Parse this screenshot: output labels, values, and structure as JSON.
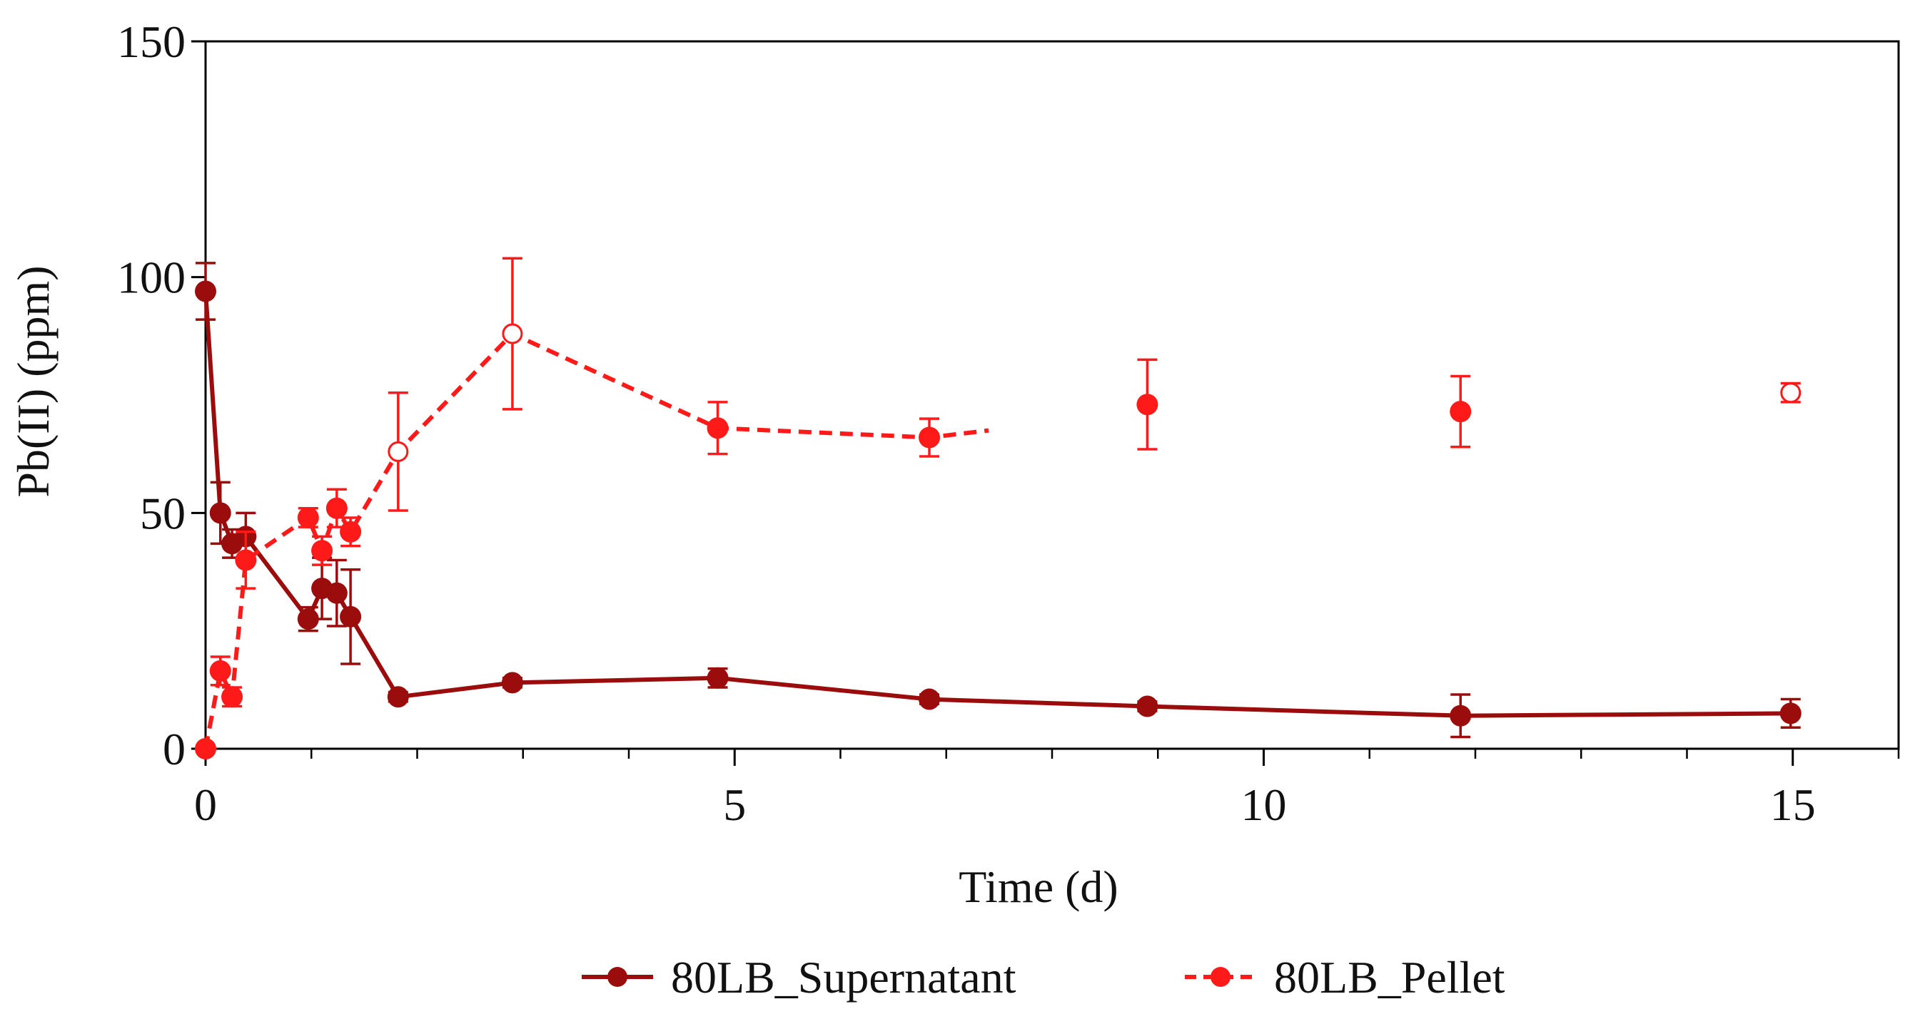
{
  "chart_data": {
    "type": "line",
    "title": "",
    "xlabel": "Time (d)",
    "ylabel": "Pb(II) (ppm)",
    "xlim": [
      0,
      16
    ],
    "ylim": [
      0,
      150
    ],
    "xticks": [
      "0",
      "5",
      "10",
      "15"
    ],
    "yticks": [
      "0",
      "50",
      "100",
      "150"
    ],
    "grid": false,
    "legend_position": "bottom",
    "colors": {
      "supernatant": "#9b0d0d",
      "pellet": "#ff1a1a",
      "axis": "#000000"
    },
    "series": [
      {
        "name": "80LB_Supernatant",
        "style": "solid",
        "points": [
          {
            "x": 0,
            "y": 97,
            "err": 6
          },
          {
            "x": 0.14,
            "y": 50,
            "err": 6.5
          },
          {
            "x": 0.25,
            "y": 43.5,
            "err": 3
          },
          {
            "x": 0.38,
            "y": 45,
            "err": 5
          },
          {
            "x": 0.97,
            "y": 27.5,
            "err": 2.5
          },
          {
            "x": 1.1,
            "y": 34,
            "err": 6.5
          },
          {
            "x": 1.24,
            "y": 33,
            "err": 7
          },
          {
            "x": 1.37,
            "y": 28,
            "err": 10
          },
          {
            "x": 1.82,
            "y": 11,
            "err": 1
          },
          {
            "x": 2.9,
            "y": 14,
            "err": 1
          },
          {
            "x": 4.84,
            "y": 15,
            "err": 2
          },
          {
            "x": 6.84,
            "y": 10.5,
            "err": 1
          },
          {
            "x": 8.9,
            "y": 9,
            "err": 1
          },
          {
            "x": 11.86,
            "y": 7,
            "err": 4.5
          },
          {
            "x": 14.98,
            "y": 7.5,
            "err": 3
          }
        ]
      },
      {
        "name": "80LB_Pellet",
        "style": "dashed",
        "points": [
          {
            "x": 0,
            "y": 0,
            "err": 0
          },
          {
            "x": 0.14,
            "y": 16.5,
            "err": 3
          },
          {
            "x": 0.25,
            "y": 11,
            "err": 2
          },
          {
            "x": 0.38,
            "y": 40,
            "err": 6
          },
          {
            "x": 0.97,
            "y": 49,
            "err": 2
          },
          {
            "x": 1.1,
            "y": 42,
            "err": 3
          },
          {
            "x": 1.24,
            "y": 51,
            "err": 4
          },
          {
            "x": 1.37,
            "y": 46,
            "err": 3
          },
          {
            "x": 1.82,
            "y": 63,
            "err": 12.5,
            "open": true
          },
          {
            "x": 2.9,
            "y": 88,
            "err": 16,
            "open": true
          },
          {
            "x": 4.84,
            "y": 68,
            "err": 5.5
          },
          {
            "x": 6.84,
            "y": 66,
            "err": 4
          },
          {
            "x": 8.9,
            "y": 73,
            "err": 9.5,
            "no_line": true
          },
          {
            "x": 11.86,
            "y": 71.5,
            "err": 7.5,
            "no_line": true
          },
          {
            "x": 14.98,
            "y": 75.5,
            "err": 2,
            "open": true,
            "no_line": true
          }
        ],
        "line_end_x": 7.4
      }
    ]
  }
}
